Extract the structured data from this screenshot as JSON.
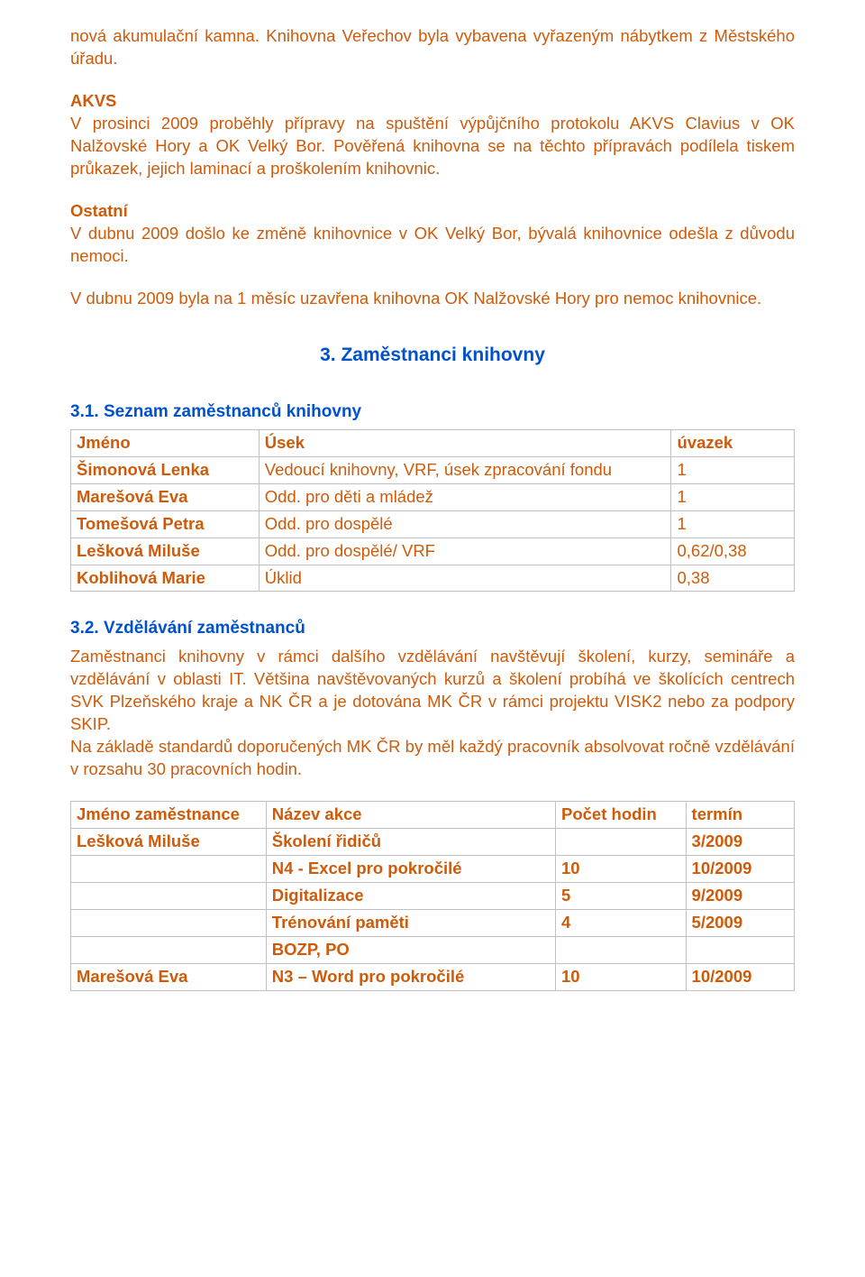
{
  "p1": "nová akumulační kamna. Knihovna Veřechov byla vybavena vyřazeným nábytkem z Městského úřadu.",
  "p2_head": "AKVS",
  "p2": "V prosinci 2009 proběhly přípravy na spuštění výpůjčního protokolu AKVS Clavius v OK Nalžovské Hory a OK Velký Bor. Pověřená knihovna se na těchto přípravách podílela tiskem průkazek, jejich laminací a proškolením knihovnic.",
  "p3_head": "Ostatní",
  "p3": "V dubnu 2009 došlo ke změně knihovnice v OK Velký Bor, bývalá knihovnice odešla z důvodu nemoci.",
  "p4": "V dubnu 2009 byla na 1 měsíc uzavřena knihovna OK Nalžovské Hory pro nemoc knihovnice.",
  "section_heading": "3. Zaměstnanci knihovny",
  "sub1": "3.1. Seznam zaměstnanců knihovny",
  "table1": {
    "header": [
      "Jméno",
      "Úsek",
      "úvazek"
    ],
    "rows": [
      [
        "Šimonová Lenka",
        "Vedoucí knihovny, VRF, úsek zpracování fondu",
        "1"
      ],
      [
        "Marešová Eva",
        "Odd. pro děti a mládež",
        "1"
      ],
      [
        "Tomešová Petra",
        "Odd. pro dospělé",
        "1"
      ],
      [
        "Lešková Miluše",
        "Odd. pro dospělé/ VRF",
        "0,62/0,38"
      ],
      [
        "Koblihová Marie",
        "Úklid",
        "0,38"
      ]
    ]
  },
  "sub2": "3.2. Vzdělávání zaměstnanců",
  "p5": "Zaměstnanci knihovny v rámci dalšího vzdělávání navštěvují školení, kurzy, semináře  a vzdělávání v oblasti IT. Většina navštěvovaných kurzů a školení probíhá ve školících centrech SVK Plzeňského kraje a NK ČR a je dotována MK ČR v rámci projektu VISK2 nebo za podpory SKIP.",
  "p6": "Na základě standardů doporučených MK ČR by měl každý pracovník absolvovat ročně vzdělávání v rozsahu 30 pracovních hodin.",
  "table2": {
    "header": [
      "Jméno zaměstnance",
      "Název akce",
      "Počet hodin",
      "termín"
    ],
    "rows": [
      [
        "Lešková Miluše",
        "Školení řidičů",
        "",
        "3/2009"
      ],
      [
        "",
        "N4 - Excel pro pokročilé",
        "10",
        "10/2009"
      ],
      [
        "",
        "Digitalizace",
        "5",
        "9/2009"
      ],
      [
        "",
        "Trénování paměti",
        "4",
        "5/2009"
      ],
      [
        "",
        "BOZP, PO",
        "",
        ""
      ],
      [
        "Marešová Eva",
        "N3 – Word pro pokročilé",
        "10",
        "10/2009"
      ]
    ]
  },
  "colors": {
    "text": "#cf5b0a",
    "heading": "#0052cc",
    "border": "#c0c0c0",
    "background": "#ffffff"
  }
}
